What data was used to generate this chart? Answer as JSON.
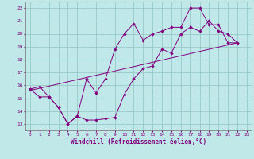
{
  "xlabel": "Windchill (Refroidissement éolien,°C)",
  "bg_color": "#c0e8e8",
  "grid_color": "#98c8c8",
  "line_color": "#800080",
  "ylim": [
    12.5,
    22.5
  ],
  "xlim": [
    -0.5,
    23.5
  ],
  "yticks": [
    13,
    14,
    15,
    16,
    17,
    18,
    19,
    20,
    21,
    22
  ],
  "xticks": [
    0,
    1,
    2,
    3,
    4,
    5,
    6,
    7,
    8,
    9,
    10,
    11,
    12,
    13,
    14,
    15,
    16,
    17,
    18,
    19,
    20,
    21,
    22,
    23
  ],
  "line1_x": [
    0,
    1,
    2,
    3,
    4,
    5,
    6,
    7,
    8,
    9,
    10,
    11,
    12,
    13,
    14,
    15,
    16,
    17,
    18,
    19,
    20,
    21,
    22
  ],
  "line1_y": [
    15.7,
    15.9,
    15.1,
    14.3,
    13.0,
    13.6,
    13.3,
    13.3,
    13.4,
    13.5,
    15.3,
    16.5,
    17.3,
    17.5,
    18.8,
    18.5,
    20.0,
    20.5,
    20.2,
    21.0,
    20.2,
    20.0,
    19.3
  ],
  "line2_x": [
    0,
    1,
    2,
    3,
    4,
    5,
    6,
    7,
    8,
    9,
    10,
    11,
    12,
    13,
    14,
    15,
    16,
    17,
    18,
    19,
    20,
    21,
    22
  ],
  "line2_y": [
    15.7,
    15.1,
    15.1,
    14.3,
    13.0,
    13.6,
    16.5,
    15.4,
    16.5,
    18.8,
    20.0,
    20.8,
    19.5,
    20.0,
    20.2,
    20.5,
    20.5,
    22.0,
    22.0,
    20.7,
    20.7,
    19.3,
    19.3
  ],
  "line3_x": [
    0,
    22
  ],
  "line3_y": [
    15.6,
    19.3
  ],
  "tick_fontsize": 4.5,
  "xlabel_fontsize": 5.5
}
